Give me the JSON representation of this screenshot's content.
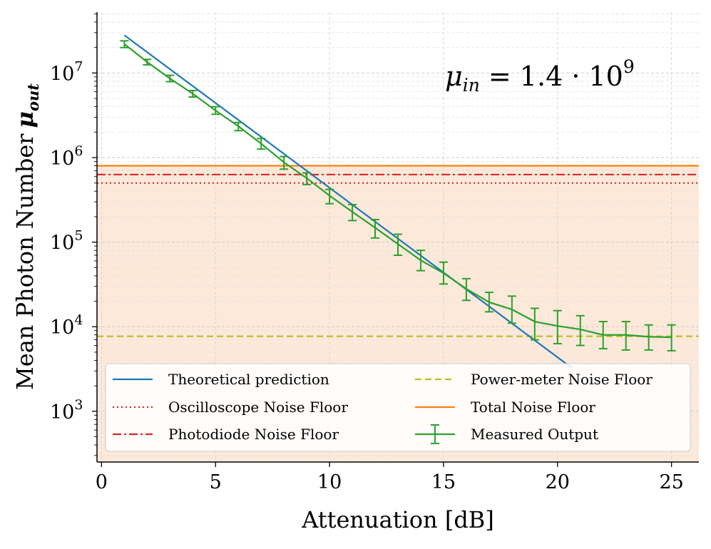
{
  "chart_data": {
    "type": "line",
    "xlabel": "Attenuation [dB]",
    "ylabel_main": "Mean Photon Number",
    "ylabel_symbol": "μ",
    "ylabel_sub": "out",
    "xlim": [
      -0.2,
      26.2
    ],
    "ylim_log10": [
      2.4,
      7.72
    ],
    "yscale": "log",
    "x_ticks": [
      0,
      5,
      10,
      15,
      20,
      25
    ],
    "y_ticks": [
      {
        "exp": 3,
        "base": "10",
        "sup": "3"
      },
      {
        "exp": 4,
        "base": "10",
        "sup": "4"
      },
      {
        "exp": 5,
        "base": "10",
        "sup": "5"
      },
      {
        "exp": 6,
        "base": "10",
        "sup": "6"
      },
      {
        "exp": 7,
        "base": "10",
        "sup": "7"
      }
    ],
    "grid": true,
    "annotation": {
      "symbol": "μ",
      "sub": "in",
      "text": " = 1.4 · 10",
      "sup": "9"
    },
    "series": [
      {
        "name": "Theoretical prediction",
        "kind": "line",
        "style": "solid",
        "color": "#1f77b4",
        "x": [
          1,
          20.6
        ],
        "y": [
          28000000,
          3300
        ]
      },
      {
        "name": "Oscilloscope Noise Floor",
        "kind": "hline",
        "style": "dotted",
        "color": "#d62728",
        "y": 500000
      },
      {
        "name": "Photodiode Noise Floor",
        "kind": "hline",
        "style": "dashdot",
        "color": "#d62728",
        "y": 630000
      },
      {
        "name": "Power-meter Noise Floor",
        "kind": "hline",
        "style": "dashed",
        "color": "#bcbd22",
        "y": 7700
      },
      {
        "name": "Total Noise Floor",
        "kind": "hline",
        "style": "solid",
        "color": "#ff7f0e",
        "y": 800000
      },
      {
        "name": "Measured Output",
        "kind": "errorbar",
        "style": "solid",
        "color": "#2ca02c",
        "x": [
          1,
          2,
          3,
          4,
          5,
          6,
          7,
          8,
          9,
          10,
          11,
          12,
          13,
          14,
          15,
          16,
          17,
          18,
          19,
          20,
          21,
          22,
          23,
          24,
          25
        ],
        "y": [
          22000000,
          13500000,
          8600000,
          5700000,
          3600000,
          2350000,
          1460000,
          880000,
          570000,
          355000,
          228000,
          148000,
          95000,
          61000,
          43000,
          28000,
          19500,
          16000,
          11500,
          10200,
          9300,
          8000,
          8000,
          7600,
          7500
        ],
        "yerr_low": [
          20000000,
          12500000,
          7900000,
          5200000,
          3250000,
          2080000,
          1260000,
          730000,
          480000,
          285000,
          180000,
          112000,
          70000,
          46000,
          32000,
          20500,
          15000,
          11000,
          7000,
          6300,
          6000,
          5500,
          5300,
          5300,
          5200
        ],
        "yerr_high": [
          24000000,
          14500000,
          9400000,
          6200000,
          4000000,
          2600000,
          1680000,
          1030000,
          660000,
          420000,
          278000,
          185000,
          124000,
          80000,
          58000,
          37000,
          25500,
          23000,
          16500,
          15500,
          13500,
          11500,
          11500,
          10500,
          10500
        ]
      }
    ],
    "legend": {
      "placement": "lower-right",
      "columns": [
        [
          "Theoretical prediction",
          "Oscilloscope Noise Floor",
          "Photodiode Noise Floor"
        ],
        [
          "Power-meter Noise Floor",
          "Total Noise Floor",
          "Measured Output"
        ]
      ]
    },
    "shaded_region": {
      "below": 800000,
      "color": "#fde9da"
    }
  }
}
